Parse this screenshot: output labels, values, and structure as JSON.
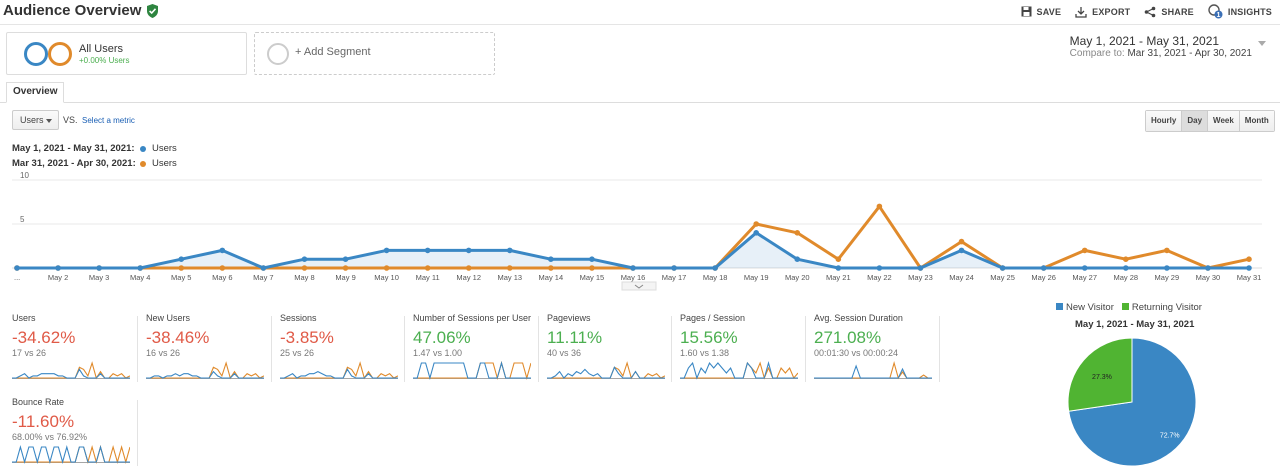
{
  "header": {
    "title": "Audience Overview",
    "actions": {
      "save": "SAVE",
      "export": "EXPORT",
      "share": "SHARE",
      "insights": "INSIGHTS",
      "insights_badge": "1"
    }
  },
  "segments": {
    "active": {
      "name": "All Users",
      "sub": "+0.00% Users"
    },
    "add_label": "+ Add Segment"
  },
  "daterange": {
    "main": "May 1, 2021 - May 31, 2021",
    "compare_prefix": "Compare to:",
    "compare_range": "Mar 31, 2021 - Apr 30, 2021"
  },
  "tabs": {
    "overview": "Overview"
  },
  "controls": {
    "metric": "Users",
    "vs": "VS.",
    "select_metric": "Select a metric",
    "granularity": [
      "Hourly",
      "Day",
      "Week",
      "Month"
    ],
    "active_granularity": "Day"
  },
  "legend": {
    "current": {
      "range": "May 1, 2021 - May 31, 2021:",
      "metric": "Users",
      "color": "#3a87c4"
    },
    "previous": {
      "range": "Mar 31, 2021 - Apr 30, 2021:",
      "metric": "Users",
      "color": "#e08a2b"
    }
  },
  "chart_data": {
    "type": "line",
    "ylim": [
      0,
      10
    ],
    "yticks": [
      5,
      10
    ],
    "categories": [
      "...",
      "May 2",
      "May 3",
      "May 4",
      "May 5",
      "May 6",
      "May 7",
      "May 8",
      "May 9",
      "May 10",
      "May 11",
      "May 12",
      "May 13",
      "May 14",
      "May 15",
      "May 16",
      "May 17",
      "May 18",
      "May 19",
      "May 20",
      "May 21",
      "May 22",
      "May 23",
      "May 24",
      "May 25",
      "May 26",
      "May 27",
      "May 28",
      "May 29",
      "May 30",
      "May 31"
    ],
    "series": [
      {
        "name": "May 1, 2021 - May 31, 2021",
        "color": "#3a87c4",
        "values": [
          0,
          0,
          0,
          0,
          1,
          2,
          0,
          1,
          1,
          2,
          2,
          2,
          2,
          1,
          1,
          0,
          0,
          0,
          4,
          1,
          0,
          0,
          0,
          2,
          0,
          0,
          0,
          0,
          0,
          0,
          0
        ]
      },
      {
        "name": "Mar 31, 2021 - Apr 30, 2021",
        "color": "#e08a2b",
        "values": [
          0,
          0,
          0,
          0,
          0,
          0,
          0,
          0,
          0,
          0,
          0,
          0,
          0,
          0,
          0,
          0,
          0,
          0,
          5,
          4,
          1,
          7,
          0,
          3,
          0,
          0,
          2,
          1,
          2,
          0,
          1
        ]
      }
    ]
  },
  "scorecards": [
    {
      "label": "Users",
      "value": "-34.62%",
      "trend": "neg",
      "sub": "17 vs 26",
      "spark_a": [
        0,
        0,
        1,
        2,
        0,
        1,
        1,
        2,
        2,
        2,
        2,
        1,
        1,
        0,
        0,
        0,
        4,
        1,
        0,
        0,
        0,
        2,
        0,
        0,
        0,
        0,
        0,
        0,
        0
      ],
      "spark_b": [
        0,
        0,
        0,
        0,
        0,
        0,
        0,
        0,
        0,
        0,
        0,
        0,
        0,
        0,
        0,
        0,
        5,
        4,
        1,
        7,
        0,
        3,
        0,
        0,
        2,
        1,
        2,
        0,
        1
      ]
    },
    {
      "label": "New Users",
      "value": "-38.46%",
      "trend": "neg",
      "sub": "16 vs 26",
      "spark_a": [
        0,
        0,
        1,
        1,
        0,
        1,
        1,
        2,
        1,
        2,
        2,
        1,
        1,
        0,
        0,
        0,
        3,
        1,
        0,
        0,
        0,
        2,
        0,
        0,
        0,
        0,
        0,
        0,
        0
      ],
      "spark_b": [
        0,
        0,
        0,
        0,
        0,
        0,
        0,
        0,
        0,
        0,
        0,
        0,
        0,
        0,
        0,
        0,
        5,
        4,
        1,
        7,
        0,
        3,
        0,
        0,
        2,
        1,
        2,
        0,
        1
      ]
    },
    {
      "label": "Sessions",
      "value": "-3.85%",
      "trend": "neg",
      "sub": "25 vs 26",
      "spark_a": [
        0,
        0,
        1,
        2,
        0,
        1,
        1,
        2,
        2,
        3,
        2,
        1,
        1,
        0,
        0,
        0,
        4,
        1,
        0,
        0,
        0,
        2,
        0,
        0,
        0,
        0,
        0,
        0,
        0
      ],
      "spark_b": [
        0,
        0,
        0,
        0,
        0,
        0,
        0,
        0,
        0,
        0,
        0,
        0,
        0,
        0,
        0,
        0,
        5,
        4,
        1,
        7,
        0,
        3,
        0,
        0,
        2,
        1,
        2,
        0,
        1
      ]
    },
    {
      "label": "Number of Sessions per User",
      "value": "47.06%",
      "trend": "pos",
      "sub": "1.47 vs 1.00",
      "spark_a": [
        0,
        0,
        2,
        2,
        0,
        2,
        2,
        2,
        2,
        2,
        2,
        2,
        2,
        0,
        0,
        0,
        2,
        2,
        0,
        0,
        0,
        2,
        0,
        0,
        0,
        0,
        0,
        0,
        0
      ],
      "spark_b": [
        0,
        0,
        0,
        0,
        0,
        0,
        0,
        0,
        0,
        0,
        0,
        0,
        0,
        0,
        0,
        0,
        2,
        2,
        2,
        2,
        0,
        2,
        0,
        0,
        2,
        2,
        2,
        0,
        2
      ]
    },
    {
      "label": "Pageviews",
      "value": "11.11%",
      "trend": "pos",
      "sub": "40 vs 36",
      "spark_a": [
        0,
        0,
        1,
        3,
        0,
        2,
        1,
        3,
        2,
        4,
        2,
        1,
        2,
        0,
        0,
        0,
        5,
        2,
        0,
        0,
        0,
        3,
        0,
        0,
        0,
        0,
        0,
        0,
        0
      ],
      "spark_b": [
        0,
        0,
        0,
        0,
        0,
        0,
        0,
        0,
        0,
        0,
        0,
        0,
        0,
        0,
        0,
        0,
        5,
        4,
        1,
        7,
        0,
        3,
        0,
        0,
        2,
        1,
        2,
        0,
        1
      ]
    },
    {
      "label": "Pages / Session",
      "value": "15.56%",
      "trend": "pos",
      "sub": "1.60 vs 1.38",
      "spark_a": [
        0,
        0,
        2,
        3,
        0,
        2,
        1,
        3,
        2,
        3,
        2,
        1,
        2,
        0,
        0,
        0,
        3,
        2,
        0,
        0,
        0,
        3,
        0,
        0,
        0,
        0,
        0,
        0,
        0
      ],
      "spark_b": [
        0,
        0,
        0,
        0,
        0,
        0,
        0,
        0,
        0,
        0,
        0,
        0,
        0,
        0,
        0,
        0,
        3,
        2,
        1,
        3,
        0,
        2,
        0,
        0,
        2,
        1,
        2,
        0,
        1
      ]
    },
    {
      "label": "Avg. Session Duration",
      "value": "271.08%",
      "trend": "pos",
      "sub": "00:01:30 vs 00:00:24",
      "spark_a": [
        0,
        0,
        0,
        0,
        0,
        0,
        0,
        0,
        0,
        0,
        4,
        0,
        0,
        0,
        0,
        0,
        0,
        0,
        0,
        0,
        0,
        3,
        0,
        0,
        0,
        0,
        0,
        0,
        0
      ],
      "spark_b": [
        0,
        0,
        0,
        0,
        0,
        0,
        0,
        0,
        0,
        0,
        0,
        0,
        0,
        0,
        0,
        0,
        0,
        0,
        0,
        5,
        0,
        2,
        0,
        0,
        0,
        0,
        1,
        0,
        0
      ]
    },
    {
      "label": "Bounce Rate",
      "value": "-11.60%",
      "trend": "neg",
      "sub": "68.00% vs 76.92%",
      "spark_a": [
        0,
        0,
        3,
        0,
        3,
        3,
        0,
        3,
        3,
        0,
        3,
        3,
        0,
        3,
        0,
        0,
        3,
        3,
        0,
        0,
        0,
        3,
        0,
        0,
        0,
        0,
        0,
        0,
        0
      ],
      "spark_b": [
        0,
        0,
        0,
        0,
        0,
        0,
        0,
        0,
        0,
        0,
        0,
        0,
        0,
        0,
        0,
        0,
        3,
        3,
        0,
        3,
        0,
        3,
        0,
        0,
        3,
        0,
        3,
        0,
        3
      ]
    }
  ],
  "pie": {
    "legend": [
      {
        "name": "New Visitor",
        "color": "#3a87c4"
      },
      {
        "name": "Returning Visitor",
        "color": "#50b432"
      }
    ],
    "title": "May 1, 2021 - May 31, 2021",
    "chart_data": {
      "type": "pie",
      "labels": [
        "New Visitor",
        "Returning Visitor"
      ],
      "values": [
        72.7,
        27.3
      ],
      "value_labels": [
        "72.7%",
        "27.3%"
      ]
    }
  }
}
